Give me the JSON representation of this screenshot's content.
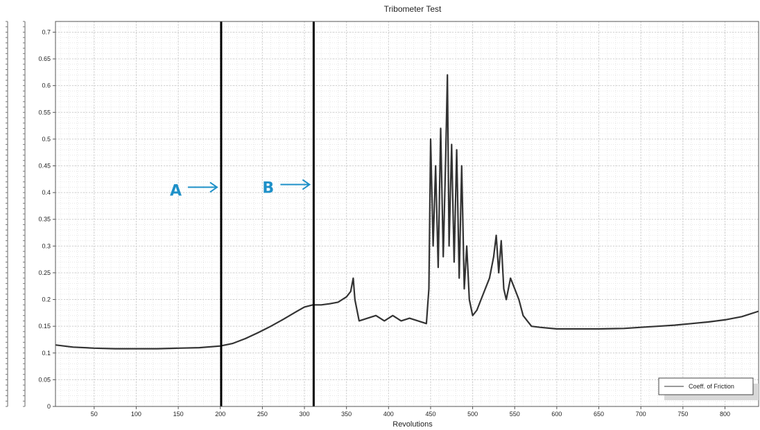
{
  "chart_data": {
    "type": "line",
    "title": "Tribometer Test",
    "xlabel": "Revolutions",
    "ylabel": "",
    "xlim": [
      4,
      840
    ],
    "ylim": [
      0,
      0.72
    ],
    "x_ticks": [
      50,
      100,
      150,
      200,
      250,
      300,
      350,
      400,
      450,
      500,
      550,
      600,
      650,
      700,
      750,
      800
    ],
    "y_ticks": [
      0,
      0.05,
      0.1,
      0.15,
      0.2,
      0.25,
      0.3,
      0.35,
      0.4,
      0.45,
      0.5,
      0.55,
      0.6,
      0.65,
      0.7
    ],
    "grid": true,
    "legend": {
      "position": "bottom-right",
      "entries": [
        "Coeff. of Friction"
      ]
    },
    "series": [
      {
        "name": "Coeff. of Friction",
        "color": "#333333",
        "x": [
          4,
          25,
          50,
          75,
          100,
          125,
          150,
          175,
          200,
          215,
          230,
          245,
          260,
          275,
          290,
          300,
          310,
          320,
          330,
          340,
          350,
          355,
          358,
          360,
          365,
          375,
          385,
          395,
          405,
          415,
          425,
          435,
          445,
          448,
          450,
          453,
          456,
          459,
          462,
          465,
          468,
          470,
          472,
          475,
          478,
          481,
          484,
          487,
          490,
          493,
          496,
          500,
          505,
          510,
          515,
          520,
          525,
          528,
          531,
          534,
          537,
          540,
          545,
          550,
          555,
          560,
          565,
          570,
          580,
          600,
          620,
          650,
          680,
          700,
          720,
          740,
          760,
          780,
          800,
          820,
          840
        ],
        "y": [
          0.115,
          0.111,
          0.109,
          0.108,
          0.108,
          0.108,
          0.109,
          0.11,
          0.113,
          0.118,
          0.127,
          0.138,
          0.15,
          0.163,
          0.177,
          0.186,
          0.19,
          0.19,
          0.192,
          0.195,
          0.205,
          0.215,
          0.24,
          0.2,
          0.16,
          0.165,
          0.17,
          0.16,
          0.17,
          0.16,
          0.165,
          0.16,
          0.155,
          0.22,
          0.5,
          0.3,
          0.45,
          0.26,
          0.52,
          0.28,
          0.47,
          0.62,
          0.3,
          0.49,
          0.27,
          0.48,
          0.24,
          0.45,
          0.22,
          0.3,
          0.2,
          0.17,
          0.18,
          0.2,
          0.22,
          0.24,
          0.28,
          0.32,
          0.25,
          0.31,
          0.22,
          0.2,
          0.24,
          0.22,
          0.2,
          0.17,
          0.16,
          0.15,
          0.148,
          0.145,
          0.145,
          0.145,
          0.146,
          0.148,
          0.15,
          0.152,
          0.155,
          0.158,
          0.162,
          0.168,
          0.178
        ]
      }
    ],
    "annotations": [
      {
        "label": "A",
        "x": 201,
        "arrow_y": 0.41,
        "color": "#1e90c8"
      },
      {
        "label": "B",
        "x": 311,
        "arrow_y": 0.415,
        "color": "#1e90c8"
      }
    ]
  }
}
